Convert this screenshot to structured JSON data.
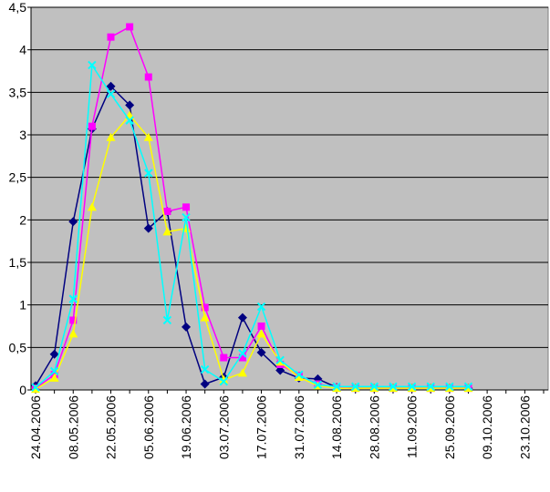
{
  "chart_data": {
    "type": "line",
    "title": "",
    "xlabel": "",
    "ylabel": "",
    "ylim": [
      0,
      4.5
    ],
    "grid": true,
    "background": "#c0c0c0",
    "y_ticks": [
      0,
      0.5,
      1,
      1.5,
      2,
      2.5,
      3,
      3.5,
      4,
      4.5
    ],
    "y_tick_labels": [
      "0",
      "0,5",
      "1",
      "1,5",
      "2",
      "2,5",
      "3",
      "3,5",
      "4",
      "4,5"
    ],
    "x_dates": [
      "24.04.2006",
      "01.05.2006",
      "08.05.2006",
      "15.05.2006",
      "22.05.2006",
      "29.05.2006",
      "05.06.2006",
      "12.06.2006",
      "19.06.2006",
      "26.06.2006",
      "03.07.2006",
      "10.07.2006",
      "17.07.2006",
      "24.07.2006",
      "31.07.2006",
      "07.08.2006",
      "14.08.2006",
      "21.08.2006",
      "28.08.2006",
      "04.09.2006",
      "11.09.2006",
      "18.09.2006",
      "25.09.2006",
      "02.10.2006",
      "09.10.2006",
      "16.10.2006",
      "23.10.2006",
      "30.10.2006"
    ],
    "x_tick_labels": [
      "24.04.2006",
      "08.05.2006",
      "22.05.2006",
      "05.06.2006",
      "19.06.2006",
      "03.07.2006",
      "17.07.2006",
      "31.07.2006",
      "14.08.2006",
      "28.08.2006",
      "11.09.2006",
      "25.09.2006",
      "09.10.2006",
      "23.10.2006"
    ],
    "series": [
      {
        "color": "#000080",
        "marker": "diamond",
        "x": [
          "24.04.2006",
          "01.05.2006",
          "08.05.2006",
          "15.05.2006",
          "22.05.2006",
          "29.05.2006",
          "05.06.2006",
          "12.06.2006",
          "19.06.2006",
          "26.06.2006",
          "03.07.2006",
          "10.07.2006",
          "17.07.2006",
          "24.07.2006",
          "31.07.2006",
          "07.08.2006",
          "14.08.2006",
          "21.08.2006",
          "28.08.2006",
          "04.09.2006",
          "11.09.2006",
          "18.09.2006",
          "25.09.2006",
          "02.10.2006"
        ],
        "values": [
          0.05,
          0.42,
          1.98,
          3.07,
          3.57,
          3.35,
          1.9,
          2.1,
          0.74,
          0.07,
          0.15,
          0.85,
          0.44,
          0.23,
          0.14,
          0.13,
          0.03,
          0.02,
          0.02,
          0.02,
          0.02,
          0.02,
          0.02,
          0.02
        ]
      },
      {
        "color": "#ff00ff",
        "marker": "square",
        "x": [
          "24.04.2006",
          "01.05.2006",
          "08.05.2006",
          "15.05.2006",
          "22.05.2006",
          "29.05.2006",
          "05.06.2006",
          "12.06.2006",
          "19.06.2006",
          "26.06.2006",
          "03.07.2006",
          "10.07.2006",
          "17.07.2006",
          "24.07.2006",
          "31.07.2006",
          "07.08.2006",
          "14.08.2006",
          "21.08.2006",
          "28.08.2006",
          "04.09.2006",
          "11.09.2006",
          "18.09.2006",
          "25.09.2006",
          "02.10.2006"
        ],
        "values": [
          0.02,
          0.18,
          0.82,
          3.1,
          4.15,
          4.27,
          3.68,
          2.1,
          2.15,
          0.97,
          0.38,
          0.38,
          0.75,
          0.3,
          0.17,
          0.07,
          0.03,
          0.02,
          0.02,
          0.02,
          0.02,
          0.02,
          0.02,
          0.02
        ]
      },
      {
        "color": "#ffff00",
        "marker": "triangle",
        "x": [
          "24.04.2006",
          "01.05.2006",
          "08.05.2006",
          "15.05.2006",
          "22.05.2006",
          "29.05.2006",
          "05.06.2006",
          "12.06.2006",
          "19.06.2006",
          "26.06.2006",
          "03.07.2006",
          "10.07.2006",
          "17.07.2006",
          "24.07.2006",
          "31.07.2006",
          "07.08.2006",
          "14.08.2006",
          "21.08.2006",
          "28.08.2006",
          "04.09.2006",
          "11.09.2006",
          "18.09.2006",
          "25.09.2006",
          "02.10.2006"
        ],
        "values": [
          0.01,
          0.14,
          0.66,
          2.15,
          2.97,
          3.23,
          2.97,
          1.86,
          1.9,
          0.85,
          0.12,
          0.2,
          0.66,
          0.33,
          0.15,
          0.05,
          0.02,
          0.02,
          0.02,
          0.02,
          0.02,
          0.02,
          0.02,
          0.02
        ]
      },
      {
        "color": "#00ffff",
        "marker": "x",
        "x": [
          "24.04.2006",
          "01.05.2006",
          "08.05.2006",
          "15.05.2006",
          "22.05.2006",
          "29.05.2006",
          "05.06.2006",
          "12.06.2006",
          "19.06.2006",
          "26.06.2006",
          "03.07.2006",
          "10.07.2006",
          "17.07.2006",
          "24.07.2006",
          "31.07.2006",
          "07.08.2006",
          "14.08.2006",
          "21.08.2006",
          "28.08.2006",
          "04.09.2006",
          "11.09.2006",
          "18.09.2006",
          "25.09.2006",
          "02.10.2006"
        ],
        "values": [
          0.03,
          0.22,
          1.07,
          3.82,
          3.48,
          3.17,
          2.55,
          0.82,
          2.03,
          0.24,
          0.1,
          0.43,
          0.98,
          0.35,
          0.18,
          0.06,
          0.04,
          0.04,
          0.04,
          0.04,
          0.04,
          0.04,
          0.04,
          0.04
        ]
      }
    ]
  }
}
